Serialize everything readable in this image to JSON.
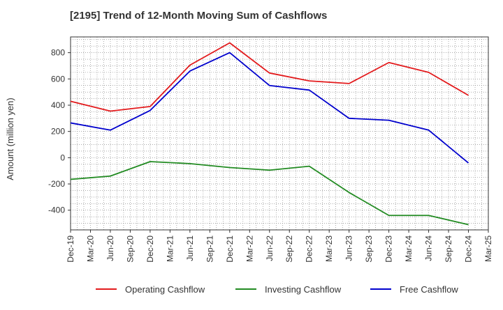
{
  "title": "[2195]  Trend of 12-Month Moving Sum of Cashflows",
  "chart_data": {
    "type": "line",
    "title": "[2195]  Trend of 12-Month Moving Sum of Cashflows",
    "xlabel": "",
    "ylabel": "Amount (million yen)",
    "x_ticks": [
      "Dec-19",
      "Mar-20",
      "Jun-20",
      "Sep-20",
      "Dec-20",
      "Mar-21",
      "Jun-21",
      "Sep-21",
      "Dec-21",
      "Mar-22",
      "Jun-22",
      "Sep-22",
      "Dec-22",
      "Mar-23",
      "Jun-23",
      "Sep-23",
      "Dec-23",
      "Mar-24",
      "Jun-24",
      "Sep-24",
      "Dec-24",
      "Mar-25"
    ],
    "y_ticks": [
      -400,
      -200,
      0,
      200,
      400,
      600,
      800
    ],
    "ylim": [
      -550,
      920
    ],
    "grid": true,
    "legend": "bottom",
    "series": [
      {
        "name": "Operating Cashflow",
        "color": "#e31a1c",
        "x": [
          "Dec-19",
          "Jun-20",
          "Dec-20",
          "Jun-21",
          "Dec-21",
          "Jun-22",
          "Dec-22",
          "Jun-23",
          "Dec-23",
          "Jun-24",
          "Dec-24"
        ],
        "values": [
          430,
          355,
          390,
          705,
          875,
          645,
          585,
          565,
          725,
          650,
          475
        ]
      },
      {
        "name": "Investing Cashflow",
        "color": "#228b22",
        "x": [
          "Dec-19",
          "Jun-20",
          "Dec-20",
          "Jun-21",
          "Dec-21",
          "Jun-22",
          "Dec-22",
          "Jun-23",
          "Dec-23",
          "Jun-24",
          "Dec-24"
        ],
        "values": [
          -165,
          -140,
          -30,
          -45,
          -75,
          -95,
          -65,
          -265,
          -440,
          -440,
          -510
        ]
      },
      {
        "name": "Free Cashflow",
        "color": "#0000cd",
        "x": [
          "Dec-19",
          "Jun-20",
          "Dec-20",
          "Jun-21",
          "Dec-21",
          "Jun-22",
          "Dec-22",
          "Jun-23",
          "Dec-23",
          "Jun-24",
          "Dec-24"
        ],
        "values": [
          265,
          210,
          360,
          660,
          800,
          550,
          515,
          300,
          285,
          210,
          -40
        ]
      }
    ]
  }
}
